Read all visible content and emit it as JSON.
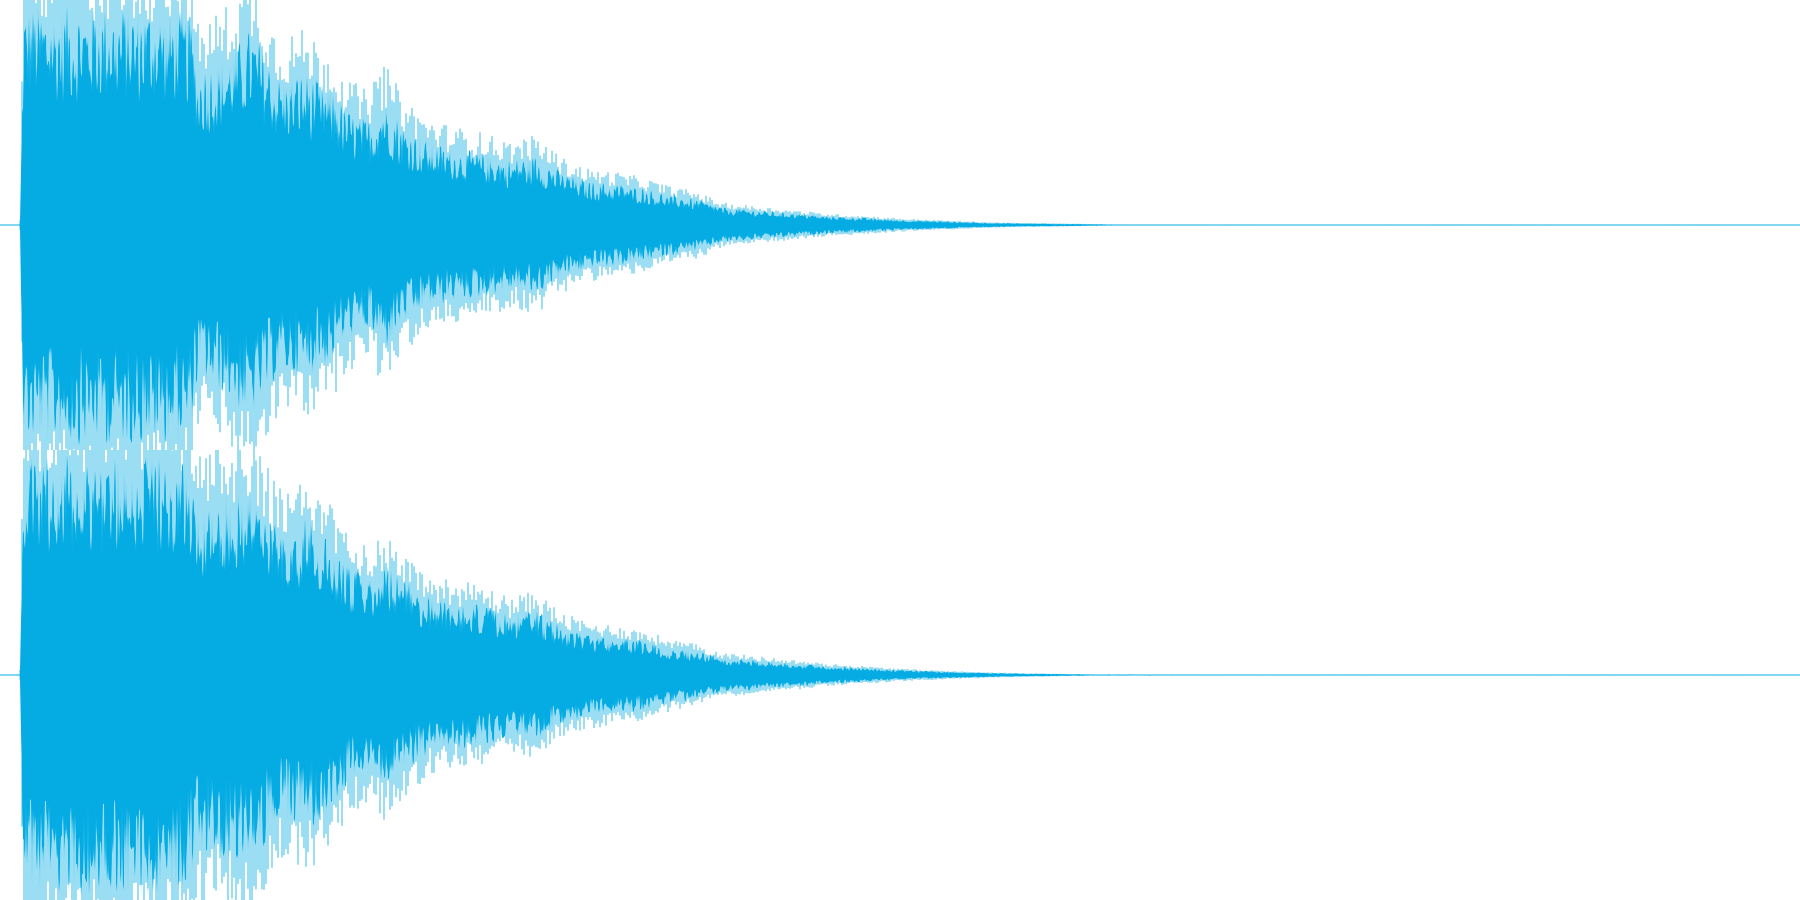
{
  "waveform": {
    "color": "#05acE3",
    "background": "#ffffff",
    "channels": [
      {
        "name": "",
        "envelope": [
          [
            0.0,
            0.02
          ],
          [
            0.002,
            1.0
          ],
          [
            0.02,
            1.0
          ],
          [
            0.04,
            1.0
          ],
          [
            0.06,
            1.0
          ],
          [
            0.08,
            1.0
          ],
          [
            0.095,
            0.98
          ],
          [
            0.1,
            0.72
          ],
          [
            0.115,
            0.78
          ],
          [
            0.13,
            0.9
          ],
          [
            0.145,
            0.68
          ],
          [
            0.16,
            0.7
          ],
          [
            0.175,
            0.62
          ],
          [
            0.185,
            0.52
          ],
          [
            0.195,
            0.48
          ],
          [
            0.205,
            0.58
          ],
          [
            0.215,
            0.46
          ],
          [
            0.23,
            0.38
          ],
          [
            0.245,
            0.35
          ],
          [
            0.26,
            0.33
          ],
          [
            0.275,
            0.3
          ],
          [
            0.29,
            0.32
          ],
          [
            0.305,
            0.24
          ],
          [
            0.32,
            0.2
          ],
          [
            0.335,
            0.19
          ],
          [
            0.35,
            0.17
          ],
          [
            0.365,
            0.14
          ],
          [
            0.38,
            0.12
          ],
          [
            0.395,
            0.08
          ],
          [
            0.41,
            0.07
          ],
          [
            0.425,
            0.06
          ],
          [
            0.44,
            0.05
          ],
          [
            0.455,
            0.04
          ],
          [
            0.47,
            0.035
          ],
          [
            0.485,
            0.028
          ],
          [
            0.5,
            0.022
          ],
          [
            0.515,
            0.018
          ],
          [
            0.53,
            0.014
          ],
          [
            0.545,
            0.01
          ],
          [
            0.56,
            0.008
          ],
          [
            0.58,
            0.006
          ],
          [
            0.6,
            0.004
          ],
          [
            0.62,
            0.002
          ],
          [
            1.0,
            0.0
          ]
        ]
      },
      {
        "name": "",
        "envelope": [
          [
            0.0,
            0.02
          ],
          [
            0.002,
            1.0
          ],
          [
            0.02,
            1.0
          ],
          [
            0.04,
            1.0
          ],
          [
            0.06,
            1.0
          ],
          [
            0.08,
            1.0
          ],
          [
            0.095,
            0.96
          ],
          [
            0.1,
            0.8
          ],
          [
            0.115,
            0.84
          ],
          [
            0.13,
            0.88
          ],
          [
            0.145,
            0.66
          ],
          [
            0.16,
            0.72
          ],
          [
            0.175,
            0.6
          ],
          [
            0.185,
            0.5
          ],
          [
            0.195,
            0.46
          ],
          [
            0.205,
            0.52
          ],
          [
            0.215,
            0.44
          ],
          [
            0.23,
            0.36
          ],
          [
            0.245,
            0.34
          ],
          [
            0.26,
            0.32
          ],
          [
            0.275,
            0.28
          ],
          [
            0.29,
            0.3
          ],
          [
            0.305,
            0.22
          ],
          [
            0.32,
            0.19
          ],
          [
            0.335,
            0.18
          ],
          [
            0.35,
            0.16
          ],
          [
            0.365,
            0.13
          ],
          [
            0.38,
            0.11
          ],
          [
            0.395,
            0.08
          ],
          [
            0.41,
            0.07
          ],
          [
            0.425,
            0.06
          ],
          [
            0.44,
            0.05
          ],
          [
            0.455,
            0.04
          ],
          [
            0.47,
            0.034
          ],
          [
            0.485,
            0.027
          ],
          [
            0.5,
            0.021
          ],
          [
            0.515,
            0.017
          ],
          [
            0.53,
            0.013
          ],
          [
            0.545,
            0.01
          ],
          [
            0.56,
            0.007
          ],
          [
            0.58,
            0.005
          ],
          [
            0.6,
            0.003
          ],
          [
            1.0,
            0.0
          ]
        ]
      }
    ]
  }
}
